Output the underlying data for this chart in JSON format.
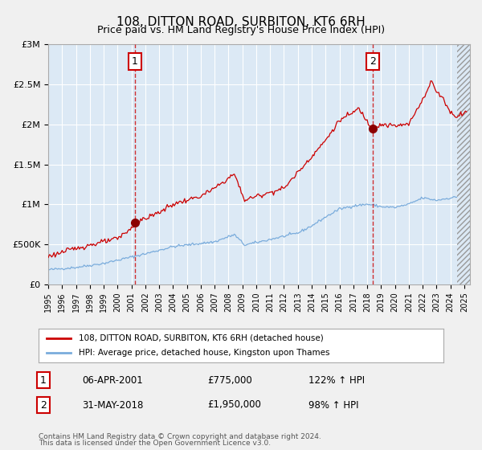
{
  "title": "108, DITTON ROAD, SURBITON, KT6 6RH",
  "subtitle": "Price paid vs. HM Land Registry's House Price Index (HPI)",
  "legend_line1": "108, DITTON ROAD, SURBITON, KT6 6RH (detached house)",
  "legend_line2": "HPI: Average price, detached house, Kingston upon Thames",
  "marker1_date": "06-APR-2001",
  "marker1_price": 775000,
  "marker1_label": "122% ↑ HPI",
  "marker2_date": "31-MAY-2018",
  "marker2_price": 1950000,
  "marker2_label": "98% ↑ HPI",
  "annotation1": "1",
  "annotation2": "2",
  "ylim_min": 0,
  "ylim_max": 3000000,
  "footer_line1": "Contains HM Land Registry data © Crown copyright and database right 2024.",
  "footer_line2": "This data is licensed under the Open Government Licence v3.0.",
  "bg_color": "#dce9f5",
  "fig_bg_color": "#f0f0f0",
  "red_line_color": "#cc0000",
  "blue_line_color": "#7aacdc",
  "marker_color": "#8b0000",
  "grid_color": "#ffffff",
  "dashed_color": "#cc0000"
}
